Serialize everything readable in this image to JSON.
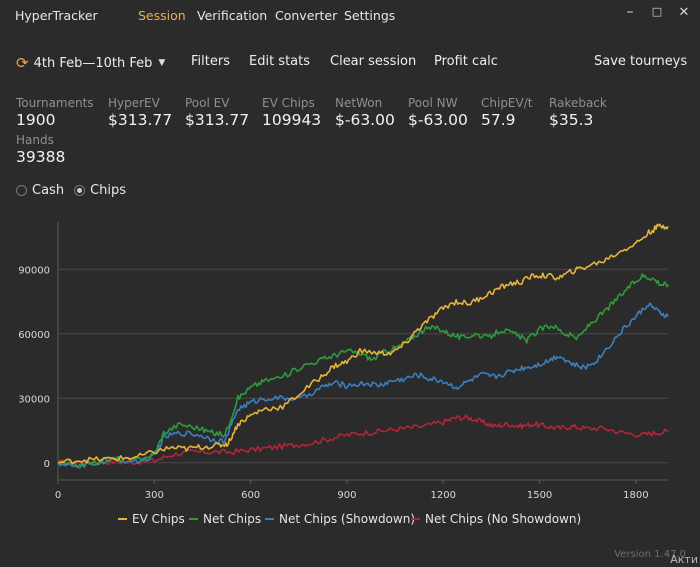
{
  "app": {
    "title": "HyperTracker",
    "menu": [
      "Session",
      "Verification",
      "Converter",
      "Settings"
    ],
    "active_menu": "Session"
  },
  "toolbar": {
    "date_range": "4th Feb—10th Feb",
    "filters": "Filters",
    "edit_stats": "Edit stats",
    "clear_session": "Clear session",
    "profit_calc": "Profit calc",
    "save_tourneys": "Save tourneys"
  },
  "stats": [
    {
      "label": "Tournaments",
      "value": "1900"
    },
    {
      "label": "HyperEV",
      "value": "$313.77"
    },
    {
      "label": "Pool EV",
      "value": "$313.77"
    },
    {
      "label": "EV Chips",
      "value": "109943"
    },
    {
      "label": "NetWon",
      "value": "$-63.00"
    },
    {
      "label": "Pool NW",
      "value": "$-63.00"
    },
    {
      "label": "ChipEV/t",
      "value": "57.9"
    },
    {
      "label": "Rakeback",
      "value": "$35.3"
    },
    {
      "label": "Hands",
      "value": "39388"
    }
  ],
  "mode": {
    "options": [
      "Cash",
      "Chips"
    ],
    "selected": "Chips"
  },
  "chart_data": {
    "type": "line",
    "title": "",
    "xlabel": "",
    "ylabel": "",
    "x_ticks": [
      0,
      300,
      600,
      900,
      1200,
      1500,
      1800
    ],
    "y_ticks": [
      0,
      30000,
      60000,
      90000
    ],
    "xlim": [
      0,
      1900
    ],
    "ylim": [
      -8000,
      112000
    ],
    "grid": "horizontal",
    "legend_position": "bottom",
    "series": [
      {
        "name": "EV Chips",
        "color": "#e6b43a",
        "points": [
          [
            0,
            0
          ],
          [
            60,
            1200
          ],
          [
            120,
            1500
          ],
          [
            180,
            2000
          ],
          [
            240,
            2500
          ],
          [
            300,
            5000
          ],
          [
            350,
            7000
          ],
          [
            400,
            6500
          ],
          [
            450,
            7500
          ],
          [
            500,
            8000
          ],
          [
            530,
            9000
          ],
          [
            560,
            18000
          ],
          [
            600,
            22000
          ],
          [
            640,
            25000
          ],
          [
            700,
            26000
          ],
          [
            760,
            33000
          ],
          [
            820,
            40000
          ],
          [
            860,
            45000
          ],
          [
            900,
            47000
          ],
          [
            940,
            52000
          ],
          [
            1000,
            51000
          ],
          [
            1040,
            51000
          ],
          [
            1080,
            55000
          ],
          [
            1120,
            62000
          ],
          [
            1160,
            67000
          ],
          [
            1200,
            72000
          ],
          [
            1240,
            75000
          ],
          [
            1280,
            74000
          ],
          [
            1320,
            77000
          ],
          [
            1360,
            80000
          ],
          [
            1400,
            83000
          ],
          [
            1440,
            84000
          ],
          [
            1480,
            87000
          ],
          [
            1520,
            87000
          ],
          [
            1560,
            86000
          ],
          [
            1600,
            89000
          ],
          [
            1640,
            91000
          ],
          [
            1700,
            94000
          ],
          [
            1760,
            99000
          ],
          [
            1800,
            102000
          ],
          [
            1840,
            107000
          ],
          [
            1870,
            110000
          ],
          [
            1900,
            109943
          ]
        ]
      },
      {
        "name": "Net Chips",
        "color": "#2e9b3c",
        "points": [
          [
            0,
            0
          ],
          [
            60,
            -1500
          ],
          [
            120,
            500
          ],
          [
            180,
            2000
          ],
          [
            240,
            1000
          ],
          [
            300,
            4000
          ],
          [
            330,
            14000
          ],
          [
            380,
            18000
          ],
          [
            440,
            16000
          ],
          [
            480,
            14000
          ],
          [
            520,
            13000
          ],
          [
            560,
            30000
          ],
          [
            600,
            35000
          ],
          [
            640,
            38000
          ],
          [
            700,
            40000
          ],
          [
            760,
            45000
          ],
          [
            820,
            48000
          ],
          [
            860,
            50000
          ],
          [
            900,
            52000
          ],
          [
            940,
            51000
          ],
          [
            980,
            48000
          ],
          [
            1020,
            52000
          ],
          [
            1060,
            54000
          ],
          [
            1100,
            58000
          ],
          [
            1140,
            62000
          ],
          [
            1180,
            63000
          ],
          [
            1220,
            60000
          ],
          [
            1260,
            58000
          ],
          [
            1300,
            60000
          ],
          [
            1340,
            58000
          ],
          [
            1380,
            62000
          ],
          [
            1420,
            60000
          ],
          [
            1460,
            57000
          ],
          [
            1500,
            62000
          ],
          [
            1540,
            64000
          ],
          [
            1580,
            60000
          ],
          [
            1620,
            58000
          ],
          [
            1660,
            65000
          ],
          [
            1700,
            70000
          ],
          [
            1740,
            76000
          ],
          [
            1780,
            82000
          ],
          [
            1820,
            87000
          ],
          [
            1850,
            86000
          ],
          [
            1880,
            83000
          ],
          [
            1900,
            83000
          ]
        ]
      },
      {
        "name": "Net Chips (Showdown)",
        "color": "#3b7fbf",
        "points": [
          [
            0,
            0
          ],
          [
            60,
            -2000
          ],
          [
            120,
            0
          ],
          [
            180,
            1500
          ],
          [
            240,
            500
          ],
          [
            300,
            3000
          ],
          [
            330,
            12000
          ],
          [
            380,
            14000
          ],
          [
            440,
            13000
          ],
          [
            480,
            11000
          ],
          [
            520,
            10000
          ],
          [
            560,
            25000
          ],
          [
            600,
            28000
          ],
          [
            640,
            30000
          ],
          [
            700,
            30000
          ],
          [
            760,
            30000
          ],
          [
            820,
            35000
          ],
          [
            860,
            37000
          ],
          [
            900,
            36000
          ],
          [
            960,
            37000
          ],
          [
            1000,
            36000
          ],
          [
            1040,
            38000
          ],
          [
            1080,
            39000
          ],
          [
            1120,
            41000
          ],
          [
            1160,
            39000
          ],
          [
            1200,
            38000
          ],
          [
            1240,
            35000
          ],
          [
            1280,
            38000
          ],
          [
            1320,
            41000
          ],
          [
            1360,
            40000
          ],
          [
            1400,
            42000
          ],
          [
            1440,
            44000
          ],
          [
            1480,
            45000
          ],
          [
            1520,
            47000
          ],
          [
            1560,
            50000
          ],
          [
            1600,
            46000
          ],
          [
            1640,
            44000
          ],
          [
            1680,
            48000
          ],
          [
            1720,
            55000
          ],
          [
            1760,
            62000
          ],
          [
            1800,
            68000
          ],
          [
            1840,
            74000
          ],
          [
            1870,
            70000
          ],
          [
            1900,
            68000
          ]
        ]
      },
      {
        "name": "Net Chips (No Showdown)",
        "color": "#b3263a",
        "points": [
          [
            0,
            0
          ],
          [
            60,
            200
          ],
          [
            120,
            500
          ],
          [
            180,
            300
          ],
          [
            240,
            400
          ],
          [
            300,
            1000
          ],
          [
            360,
            4000
          ],
          [
            420,
            5000
          ],
          [
            480,
            5000
          ],
          [
            540,
            5000
          ],
          [
            600,
            6000
          ],
          [
            660,
            7000
          ],
          [
            720,
            8000
          ],
          [
            780,
            9000
          ],
          [
            840,
            11000
          ],
          [
            900,
            13000
          ],
          [
            960,
            14000
          ],
          [
            1020,
            15000
          ],
          [
            1080,
            16000
          ],
          [
            1140,
            17000
          ],
          [
            1200,
            19000
          ],
          [
            1240,
            21000
          ],
          [
            1280,
            21000
          ],
          [
            1320,
            19000
          ],
          [
            1360,
            17000
          ],
          [
            1400,
            18000
          ],
          [
            1440,
            17000
          ],
          [
            1480,
            18000
          ],
          [
            1520,
            17000
          ],
          [
            1560,
            16000
          ],
          [
            1600,
            17000
          ],
          [
            1640,
            16000
          ],
          [
            1700,
            16000
          ],
          [
            1760,
            14000
          ],
          [
            1820,
            13000
          ],
          [
            1860,
            14000
          ],
          [
            1900,
            14500
          ]
        ]
      }
    ]
  },
  "version": "Version 1.47.0",
  "overlay_text": "Акти"
}
